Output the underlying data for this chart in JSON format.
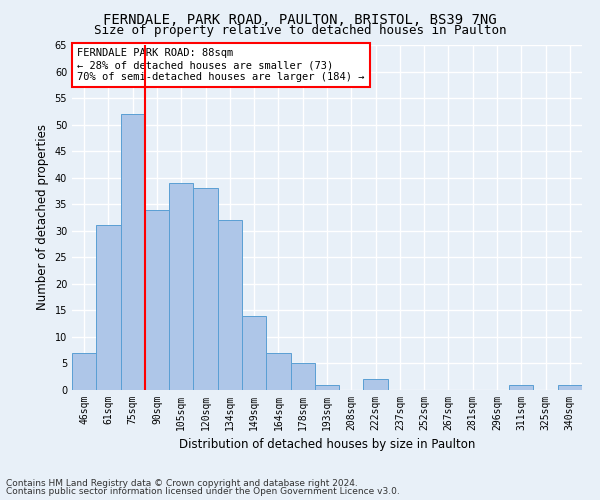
{
  "title1": "FERNDALE, PARK ROAD, PAULTON, BRISTOL, BS39 7NG",
  "title2": "Size of property relative to detached houses in Paulton",
  "xlabel": "Distribution of detached houses by size in Paulton",
  "ylabel": "Number of detached properties",
  "categories": [
    "46sqm",
    "61sqm",
    "75sqm",
    "90sqm",
    "105sqm",
    "120sqm",
    "134sqm",
    "149sqm",
    "164sqm",
    "178sqm",
    "193sqm",
    "208sqm",
    "222sqm",
    "237sqm",
    "252sqm",
    "267sqm",
    "281sqm",
    "296sqm",
    "311sqm",
    "325sqm",
    "340sqm"
  ],
  "values": [
    7,
    31,
    52,
    34,
    39,
    38,
    32,
    14,
    7,
    5,
    1,
    0,
    2,
    0,
    0,
    0,
    0,
    0,
    1,
    0,
    1
  ],
  "bar_color": "#aec6e8",
  "bar_edge_color": "#5a9fd4",
  "background_color": "#e8f0f8",
  "grid_color": "#ffffff",
  "vline_x": 2.5,
  "vline_color": "red",
  "annotation_text": "FERNDALE PARK ROAD: 88sqm\n← 28% of detached houses are smaller (73)\n70% of semi-detached houses are larger (184) →",
  "annotation_box_color": "white",
  "annotation_box_edge_color": "red",
  "ylim": [
    0,
    65
  ],
  "footer1": "Contains HM Land Registry data © Crown copyright and database right 2024.",
  "footer2": "Contains public sector information licensed under the Open Government Licence v3.0.",
  "title1_fontsize": 10,
  "title2_fontsize": 9,
  "xlabel_fontsize": 8.5,
  "ylabel_fontsize": 8.5,
  "tick_fontsize": 7,
  "annotation_fontsize": 7.5,
  "footer_fontsize": 6.5
}
